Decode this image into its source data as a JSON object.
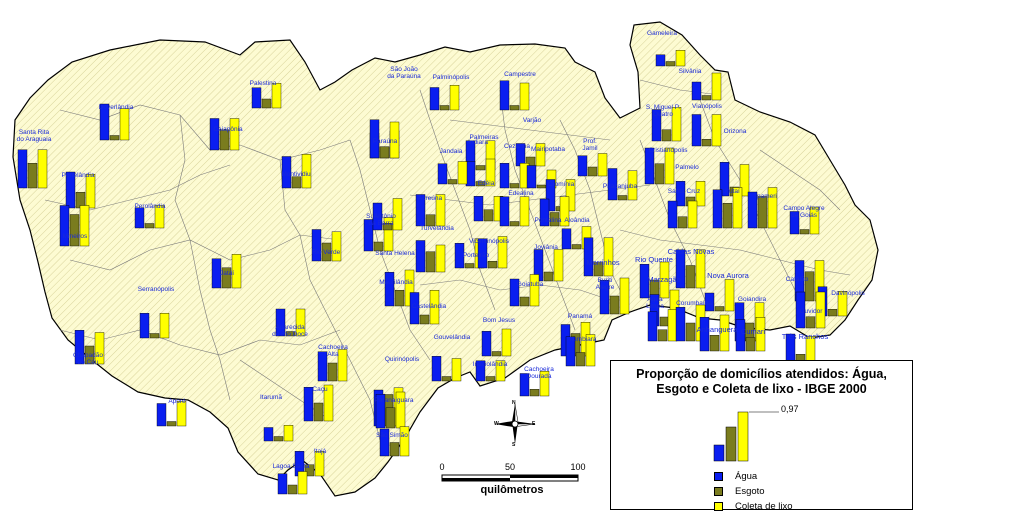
{
  "legend": {
    "title_line1": "Proporção de domicílios atendidos: Água,",
    "title_line2": "Esgoto e Coleta de lixo - IBGE 2000",
    "reference_label": "0,97",
    "reference_value": 0.97,
    "items": [
      {
        "label": "Água",
        "color": "#0a1ef0"
      },
      {
        "label": "Esgoto",
        "color": "#7a7c1e"
      },
      {
        "label": "Coleta de lixo",
        "color": "#ffff00"
      }
    ]
  },
  "scale": {
    "ticks": [
      "0",
      "50",
      "100"
    ],
    "unit": "quilômetros"
  },
  "north_arrow": {
    "n": "N",
    "s": "S",
    "e": "E",
    "w": "W"
  },
  "municipalities": [
    {
      "name": "Gameleira"
    },
    {
      "name": "Silvânia"
    },
    {
      "name": "São João\nda Paraúna"
    },
    {
      "name": "Palminópolis"
    },
    {
      "name": "Campestre"
    },
    {
      "name": "Palestina"
    },
    {
      "name": "Doverlândia"
    },
    {
      "name": "Caiapônia"
    },
    {
      "name": "Paraúna"
    },
    {
      "name": "Palmeiras"
    },
    {
      "name": "Varjão"
    },
    {
      "name": "Indiara"
    },
    {
      "name": "Cezarina"
    },
    {
      "name": "Mairipotaba"
    },
    {
      "name": "Prof.\nJamil"
    },
    {
      "name": "Jandaia"
    },
    {
      "name": "Santa Rita\ndo Araguaia"
    },
    {
      "name": "Portelândia"
    },
    {
      "name": "Montividiu"
    },
    {
      "name": "Perolândia"
    },
    {
      "name": "Mineiros"
    },
    {
      "name": "Acreúna"
    },
    {
      "name": "Edéia"
    },
    {
      "name": "Edealina"
    },
    {
      "name": "Cromínia"
    },
    {
      "name": "Piracanjuba"
    },
    {
      "name": "S. Miguel P.\nQuatro"
    },
    {
      "name": "Vianópolis"
    },
    {
      "name": "Orizona"
    },
    {
      "name": "Cristianópolis"
    },
    {
      "name": "Palmelo"
    },
    {
      "name": "Santa Cruz"
    },
    {
      "name": "Urutaí"
    },
    {
      "name": "Ipameri"
    },
    {
      "name": "Campo Alegre\nde Goiás"
    },
    {
      "name": "S. Antônio\nda Barra"
    },
    {
      "name": "Rio Verde"
    },
    {
      "name": "Jataí"
    },
    {
      "name": "Turvelândia"
    },
    {
      "name": "Pontalina"
    },
    {
      "name": "Aloândia"
    },
    {
      "name": "Santa Helena"
    },
    {
      "name": "Porteirão"
    },
    {
      "name": "Vicentinópolis"
    },
    {
      "name": "Joviânia"
    },
    {
      "name": "Morrinhos"
    },
    {
      "name": "Rio Quente"
    },
    {
      "name": "Caldas Novas"
    },
    {
      "name": "Nova Aurora"
    },
    {
      "name": "Catalão"
    },
    {
      "name": "Buriti\nAlegre"
    },
    {
      "name": "Marzagão"
    },
    {
      "name": "Maurilândia"
    },
    {
      "name": "Goiatuba"
    },
    {
      "name": "Serranópolis"
    },
    {
      "name": "Castelândia"
    },
    {
      "name": "Água\nLimpa"
    },
    {
      "name": "Corumbaíba"
    },
    {
      "name": "Goiandira"
    },
    {
      "name": "Davinópolis"
    },
    {
      "name": "Ouvidor"
    },
    {
      "name": "Três Ranchos"
    },
    {
      "name": "Cumari"
    },
    {
      "name": "Anhanguera"
    },
    {
      "name": "Panamá"
    },
    {
      "name": "Aparecida\ndo Rio Doce"
    },
    {
      "name": "Bom Jesus"
    },
    {
      "name": "Itumbiara"
    },
    {
      "name": "Gouvelândia"
    },
    {
      "name": "Cachoeira\nAlta"
    },
    {
      "name": "Chapadão\ndo Céu"
    },
    {
      "name": "Inaciolândia"
    },
    {
      "name": "Cachoeira\nDourada"
    },
    {
      "name": "Quirinópolis"
    },
    {
      "name": "Caçu"
    },
    {
      "name": "Aporé"
    },
    {
      "name": "Paranaiguara"
    },
    {
      "name": "Itarumã"
    },
    {
      "name": "São Simão"
    },
    {
      "name": "Itajá"
    },
    {
      "name": "Lagoa Santa"
    }
  ]
}
